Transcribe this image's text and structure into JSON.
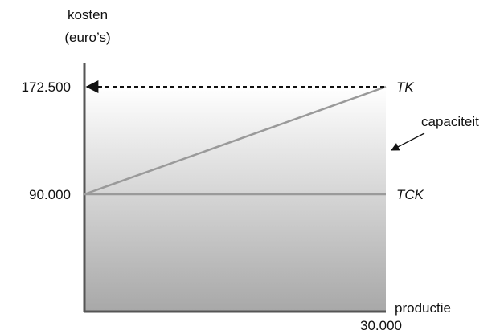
{
  "chart_data": {
    "type": "line",
    "ylabel_line1": "kosten",
    "ylabel_line2": "(euro’s)",
    "xlabel": "productie",
    "x_max_label": "30.000",
    "x_range": [
      0,
      30000
    ],
    "y_range": [
      0,
      172500
    ],
    "y_ticks": [
      {
        "value": 90000,
        "label": "90.000"
      },
      {
        "value": 172500,
        "label": "172.500"
      }
    ],
    "series": [
      {
        "name": "TK",
        "x": [
          0,
          30000
        ],
        "y": [
          90000,
          172500
        ],
        "color": "#9a9a9a"
      },
      {
        "name": "TCK",
        "x": [
          0,
          30000
        ],
        "y": [
          90000,
          90000
        ],
        "color": "#9a9a9a"
      }
    ],
    "annotation": {
      "text": "capaciteit"
    },
    "shading": {
      "top_color": "#ffffff",
      "bottom_color": "#a8a8a8"
    }
  }
}
